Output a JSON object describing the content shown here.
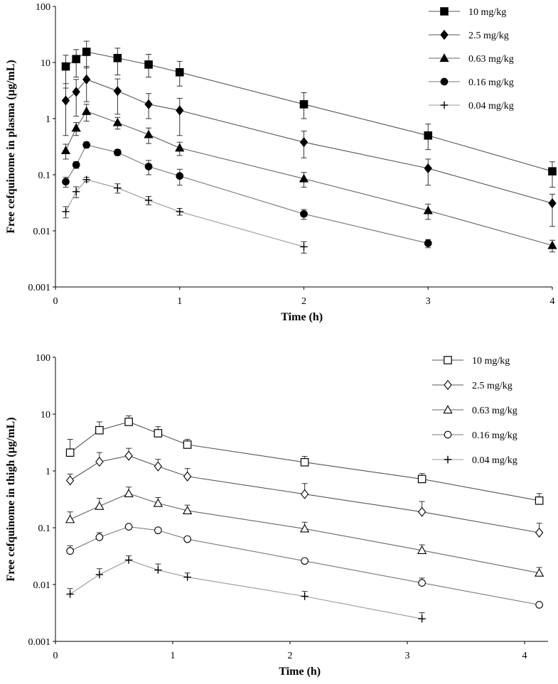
{
  "chart_data": [
    {
      "type": "line",
      "yscale": "log",
      "xlabel": "Time (h)",
      "ylabel": "Free cefquinome in plasma (µg/mL)",
      "xlim": [
        0,
        4
      ],
      "ylim": [
        0.001,
        100
      ],
      "xticks": [
        "0",
        "1",
        "2",
        "3",
        "4"
      ],
      "yticks": [
        "0.001",
        "0.01",
        "0.1",
        "1",
        "10",
        "100"
      ],
      "legend_position": "top-right",
      "series": [
        {
          "name": "10 mg/kg",
          "marker": "square-filled",
          "color": "#555555",
          "x": [
            0.083,
            0.167,
            0.25,
            0.5,
            0.75,
            1,
            2,
            3,
            4
          ],
          "y": [
            8.5,
            11.5,
            15.5,
            12,
            9.2,
            6.7,
            1.8,
            0.5,
            0.115
          ],
          "err": [
            [
              3.5,
              13.5
            ],
            [
              5.5,
              17
            ],
            [
              8,
              24
            ],
            [
              6,
              18
            ],
            [
              5.5,
              14
            ],
            [
              3.8,
              10.5
            ],
            [
              1,
              2.9
            ],
            [
              0.28,
              0.8
            ],
            [
              0.06,
              0.17
            ]
          ]
        },
        {
          "name": "2.5 mg/kg",
          "marker": "diamond-filled",
          "color": "#555555",
          "x": [
            0.083,
            0.167,
            0.25,
            0.5,
            0.75,
            1,
            2,
            3,
            4
          ],
          "y": [
            2.1,
            3.0,
            5.0,
            3.1,
            1.8,
            1.4,
            0.38,
            0.13,
            0.031
          ],
          "err": [
            [
              0.5,
              4.2
            ],
            [
              1.1,
              5
            ],
            [
              2,
              8.5
            ],
            [
              1.2,
              5.1
            ],
            [
              1.0,
              2.8
            ],
            [
              0.5,
              2.3
            ],
            [
              0.2,
              0.6
            ],
            [
              0.065,
              0.19
            ],
            [
              0.012,
              0.045
            ]
          ]
        },
        {
          "name": "0.63 mg/kg",
          "marker": "triangle-filled",
          "color": "#666666",
          "x": [
            0.083,
            0.167,
            0.25,
            0.5,
            0.75,
            1,
            2,
            3,
            4
          ],
          "y": [
            0.27,
            0.68,
            1.35,
            0.85,
            0.52,
            0.3,
            0.085,
            0.023,
            0.0055
          ],
          "err": [
            [
              0.19,
              0.35
            ],
            [
              0.5,
              0.85
            ],
            [
              0.9,
              1.8
            ],
            [
              0.65,
              1.05
            ],
            [
              0.36,
              0.68
            ],
            [
              0.22,
              0.38
            ],
            [
              0.06,
              0.11
            ],
            [
              0.016,
              0.03
            ],
            [
              0.0042,
              0.0068
            ]
          ]
        },
        {
          "name": "0.16 mg/kg",
          "marker": "circle-filled",
          "color": "#777777",
          "x": [
            0.083,
            0.167,
            0.25,
            0.5,
            0.75,
            1,
            2,
            3
          ],
          "y": [
            0.075,
            0.15,
            0.34,
            0.25,
            0.14,
            0.095,
            0.02,
            0.006
          ],
          "err": [
            [
              0.06,
              0.09
            ],
            [
              0.13,
              0.17
            ],
            [
              0.3,
              0.38
            ],
            [
              0.22,
              0.28
            ],
            [
              0.1,
              0.18
            ],
            [
              0.065,
              0.125
            ],
            [
              0.016,
              0.024
            ],
            [
              0.005,
              0.007
            ]
          ]
        },
        {
          "name": "0.04 mg/kg",
          "marker": "plus",
          "color": "#999999",
          "x": [
            0.083,
            0.167,
            0.25,
            0.5,
            0.75,
            1,
            2
          ],
          "y": [
            0.022,
            0.05,
            0.082,
            0.058,
            0.035,
            0.022,
            0.0052
          ],
          "err": [
            [
              0.017,
              0.027
            ],
            [
              0.039,
              0.061
            ],
            [
              0.075,
              0.09
            ],
            [
              0.047,
              0.069
            ],
            [
              0.029,
              0.041
            ],
            [
              0.019,
              0.025
            ],
            [
              0.004,
              0.0064
            ]
          ]
        }
      ]
    },
    {
      "type": "line",
      "yscale": "log",
      "xlabel": "Time (h)",
      "ylabel": "Free cefquinome in thigh (µg/mL)",
      "xlim": [
        0,
        4.2
      ],
      "ylim": [
        0.001,
        100
      ],
      "xticks": [
        "0",
        "1",
        "2",
        "3",
        "4"
      ],
      "yticks": [
        "0.001",
        "0.01",
        "0.1",
        "1",
        "10",
        "100"
      ],
      "legend_position": "top-right",
      "series": [
        {
          "name": "10 mg/kg",
          "marker": "square-open",
          "color": "#555555",
          "x": [
            0.125,
            0.375,
            0.625,
            0.875,
            1.125,
            2.125,
            3.125,
            4.125
          ],
          "y": [
            2.1,
            5.2,
            7.3,
            4.6,
            2.9,
            1.42,
            0.72,
            0.3
          ],
          "err": [
            [
              2.1,
              3.6
            ],
            [
              5.2,
              7.3
            ],
            [
              7.3,
              9.3
            ],
            [
              4.6,
              6.0
            ],
            [
              2.9,
              3.6
            ],
            [
              1.42,
              1.8
            ],
            [
              0.72,
              0.9
            ],
            [
              0.3,
              0.4
            ]
          ]
        },
        {
          "name": "2.5 mg/kg",
          "marker": "diamond-open",
          "color": "#555555",
          "x": [
            0.125,
            0.375,
            0.625,
            0.875,
            1.125,
            2.125,
            3.125,
            4.125
          ],
          "y": [
            0.68,
            1.45,
            1.85,
            1.2,
            0.8,
            0.39,
            0.19,
            0.082
          ],
          "err": [
            [
              0.68,
              0.88
            ],
            [
              1.45,
              2.1
            ],
            [
              1.85,
              2.5
            ],
            [
              1.2,
              1.6
            ],
            [
              0.8,
              1.1
            ],
            [
              0.39,
              0.6
            ],
            [
              0.19,
              0.29
            ],
            [
              0.082,
              0.12
            ]
          ]
        },
        {
          "name": "0.63 mg/kg",
          "marker": "triangle-open",
          "color": "#666666",
          "x": [
            0.125,
            0.375,
            0.625,
            0.875,
            1.125,
            2.125,
            3.125,
            4.125
          ],
          "y": [
            0.14,
            0.24,
            0.4,
            0.27,
            0.2,
            0.096,
            0.04,
            0.016
          ],
          "err": [
            [
              0.14,
              0.19
            ],
            [
              0.24,
              0.33
            ],
            [
              0.4,
              0.52
            ],
            [
              0.27,
              0.34
            ],
            [
              0.2,
              0.25
            ],
            [
              0.096,
              0.125
            ],
            [
              0.04,
              0.05
            ],
            [
              0.016,
              0.02
            ]
          ]
        },
        {
          "name": "0.16 mg/kg",
          "marker": "circle-open",
          "color": "#777777",
          "x": [
            0.125,
            0.375,
            0.625,
            0.875,
            1.125,
            2.125,
            3.125,
            4.125
          ],
          "y": [
            0.039,
            0.068,
            0.104,
            0.09,
            0.063,
            0.026,
            0.0107,
            0.0044
          ],
          "err": [
            [
              0.039,
              0.048
            ],
            [
              0.068,
              0.082
            ],
            [
              0.104,
              0.104
            ],
            [
              0.09,
              0.09
            ],
            [
              0.063,
              0.063
            ],
            [
              0.026,
              0.026
            ],
            [
              0.0107,
              0.013
            ],
            [
              0.0044,
              0.0044
            ]
          ]
        },
        {
          "name": "0.04 mg/kg",
          "marker": "plus",
          "color": "#999999",
          "x": [
            0.125,
            0.375,
            0.625,
            0.875,
            1.125,
            2.125,
            3.125
          ],
          "y": [
            0.0068,
            0.015,
            0.027,
            0.018,
            0.0135,
            0.0062,
            0.0025
          ],
          "err": [
            [
              0.0068,
              0.0085
            ],
            [
              0.015,
              0.019
            ],
            [
              0.027,
              0.032
            ],
            [
              0.018,
              0.023
            ],
            [
              0.0135,
              0.016
            ],
            [
              0.0062,
              0.0076
            ],
            [
              0.0025,
              0.0032
            ]
          ]
        }
      ]
    }
  ]
}
